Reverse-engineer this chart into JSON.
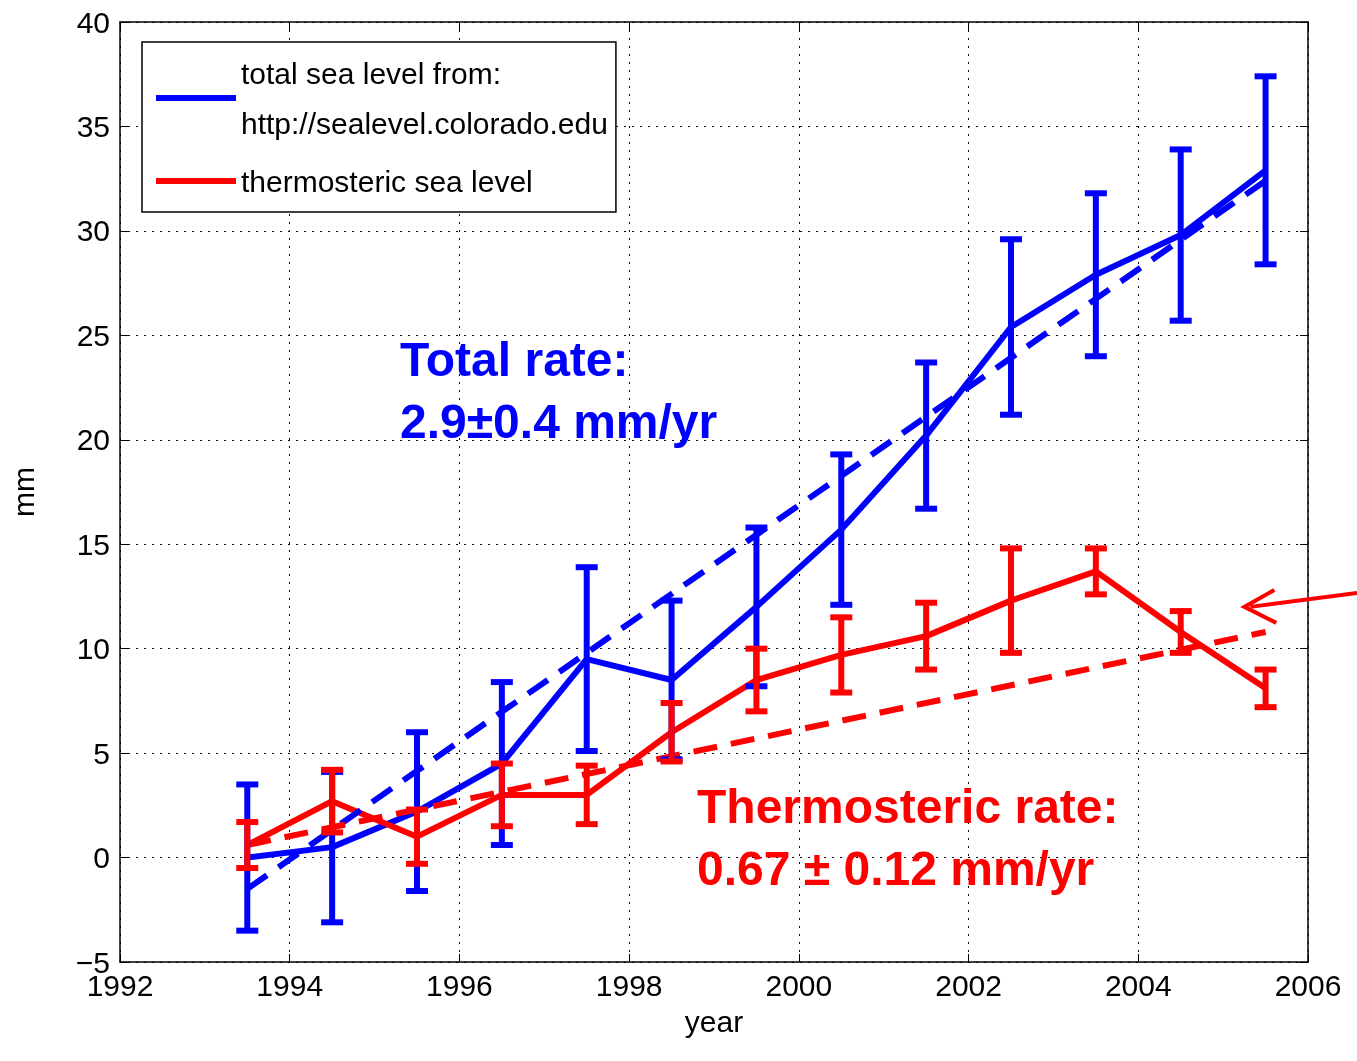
{
  "chart_data": {
    "type": "line",
    "xlabel": "year",
    "ylabel": "mm",
    "xlim": [
      1992,
      2006
    ],
    "xticks": [
      1992,
      1994,
      1996,
      1998,
      2000,
      2002,
      2004,
      2006
    ],
    "ylim": [
      -5,
      40
    ],
    "yticks": [
      -5,
      0,
      5,
      10,
      15,
      20,
      25,
      30,
      35,
      40
    ],
    "grid": true,
    "legend": "top left",
    "marker": "none",
    "series": [
      {
        "name": "total sea level from:\nhttp://sealevel.colorado.edu",
        "color": "#0000ff",
        "line_style": "solid",
        "x": [
          1993.5,
          1994.5,
          1995.5,
          1996.5,
          1997.5,
          1998.5,
          1999.5,
          2000.5,
          2001.5,
          2002.5,
          2003.5,
          2004.5,
          2005.5
        ],
        "values": [
          0,
          0.5,
          2.2,
          4.5,
          9.5,
          8.5,
          12,
          15.7,
          20.2,
          25.4,
          27.9,
          29.8,
          32.9
        ],
        "errors": [
          3.5,
          3.6,
          3.8,
          3.9,
          4.4,
          3.8,
          3.8,
          3.6,
          3.5,
          4.2,
          3.9,
          4.1,
          4.5
        ]
      },
      {
        "name": "thermosteric sea level",
        "color": "#ff0000",
        "line_style": "solid",
        "x": [
          1993.5,
          1994.5,
          1995.5,
          1996.5,
          1997.5,
          1998.5,
          1999.5,
          2000.5,
          2001.5,
          2002.5,
          2003.5,
          2004.5,
          2005.5
        ],
        "values": [
          0.6,
          2.7,
          1,
          3,
          3,
          6,
          8.5,
          9.7,
          10.6,
          12.3,
          13.7,
          10.8,
          8.1
        ],
        "errors": [
          1.1,
          1.5,
          1.3,
          1.5,
          1.4,
          1.4,
          1.5,
          1.8,
          1.6,
          2.5,
          1.1,
          1,
          0.9
        ]
      },
      {
        "color": "#0000ff",
        "line_style": "dashed",
        "x": [
          1993.5,
          2005.5
        ],
        "values": [
          -1.5,
          32.4
        ]
      },
      {
        "color": "#ff0000",
        "line_style": "dashed",
        "x": [
          1993.5,
          2005.5
        ],
        "values": [
          0.6,
          10.8
        ]
      }
    ],
    "annotations": [
      "Total rate:\n2.9±0.4 mm/yr",
      "Thermosteric rate:\n0.67 ± 0.12 mm/yr"
    ]
  }
}
